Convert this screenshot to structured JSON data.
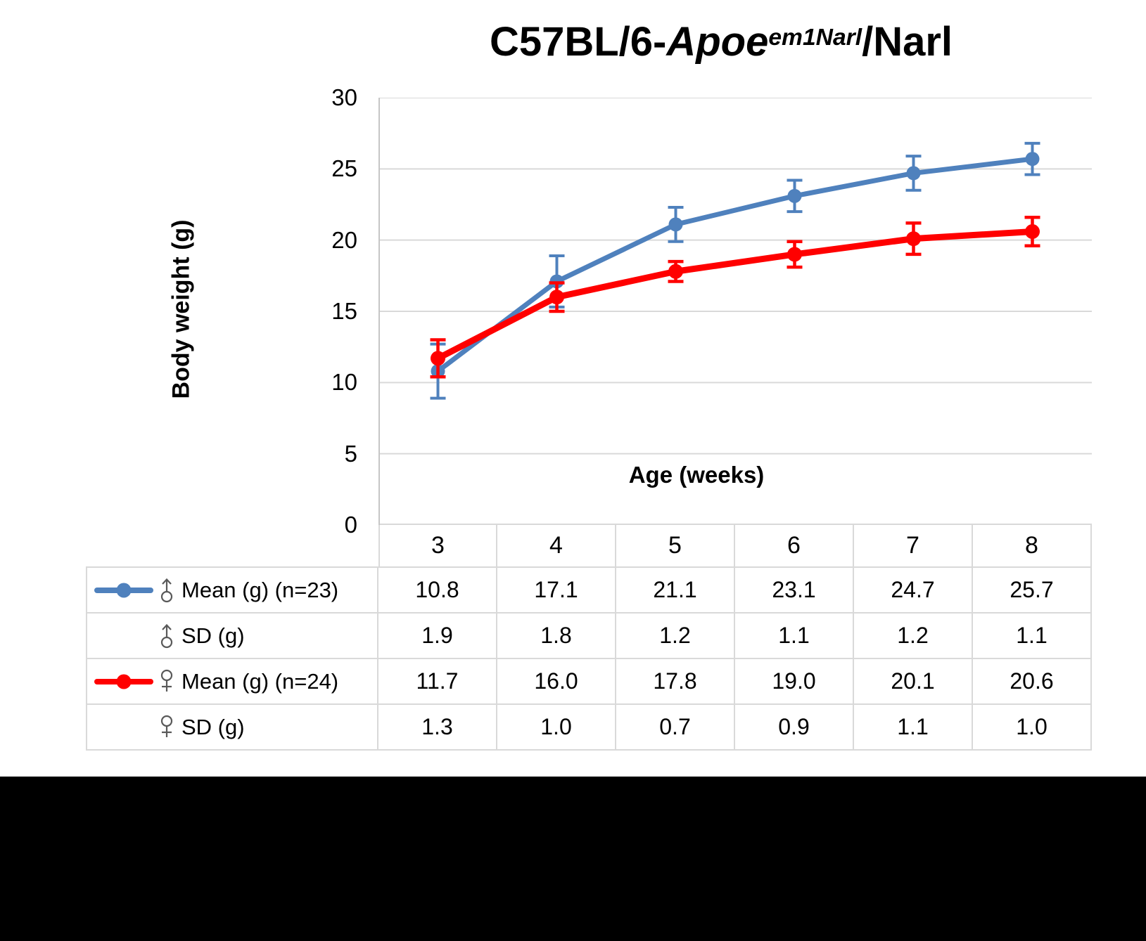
{
  "page": {
    "background": "#FFFFFF",
    "footer_band_color": "#000000"
  },
  "chart_data": {
    "type": "line",
    "title": "C57BL/6-Apoe em1Narl /Narl",
    "title_parts": {
      "prefix": "C57BL/6-",
      "gene_italic": "Apoe",
      "superscript_italic": "em1Narl",
      "suffix": "/Narl"
    },
    "xlabel": "Age (weeks)",
    "ylabel": "Body weight (g)",
    "x": [
      3,
      4,
      5,
      6,
      7,
      8
    ],
    "ylim": [
      0,
      30
    ],
    "yticks": [
      0,
      5,
      10,
      15,
      20,
      25,
      30
    ],
    "grid": true,
    "grid_color": "#D9D9D9",
    "axis_line_color": "#C6C6C6",
    "legend_position": "table-left",
    "series": [
      {
        "id": "male-mean",
        "name": "♂ Mean (g) (n=23)",
        "color": "#4F81BD",
        "marker": "circle",
        "values": [
          10.8,
          17.1,
          21.1,
          23.1,
          24.7,
          25.7
        ],
        "sd": [
          1.9,
          1.8,
          1.2,
          1.1,
          1.2,
          1.1
        ]
      },
      {
        "id": "female-mean",
        "name": "♀ Mean (g) (n=24)",
        "color": "#FF0000",
        "marker": "circle",
        "values": [
          11.7,
          16.0,
          17.8,
          19.0,
          20.1,
          20.6
        ],
        "sd": [
          1.3,
          1.0,
          0.7,
          0.9,
          1.1,
          1.0
        ]
      }
    ]
  },
  "table": {
    "icon_color": "#595959",
    "x_header_values": [
      "3",
      "4",
      "5",
      "6",
      "7",
      "8"
    ],
    "rows": [
      {
        "id": "male-mean",
        "icon": "male-icon",
        "label": "Mean (g) (n=23)",
        "marker_color": "#4F81BD",
        "values": [
          "10.8",
          "17.1",
          "21.1",
          "23.1",
          "24.7",
          "25.7"
        ]
      },
      {
        "id": "male-sd",
        "icon": "male-icon",
        "label": "SD (g)",
        "marker_color": "",
        "values": [
          "1.9",
          "1.8",
          "1.2",
          "1.1",
          "1.2",
          "1.1"
        ]
      },
      {
        "id": "female-mean",
        "icon": "female-icon",
        "label": "Mean (g) (n=24)",
        "marker_color": "#FF0000",
        "values": [
          "11.7",
          "16.0",
          "17.8",
          "19.0",
          "20.1",
          "20.6"
        ]
      },
      {
        "id": "female-sd",
        "icon": "female-icon",
        "label": "SD (g)",
        "marker_color": "",
        "values": [
          "1.3",
          "1.0",
          "0.7",
          "0.9",
          "1.1",
          "1.0"
        ]
      }
    ]
  }
}
